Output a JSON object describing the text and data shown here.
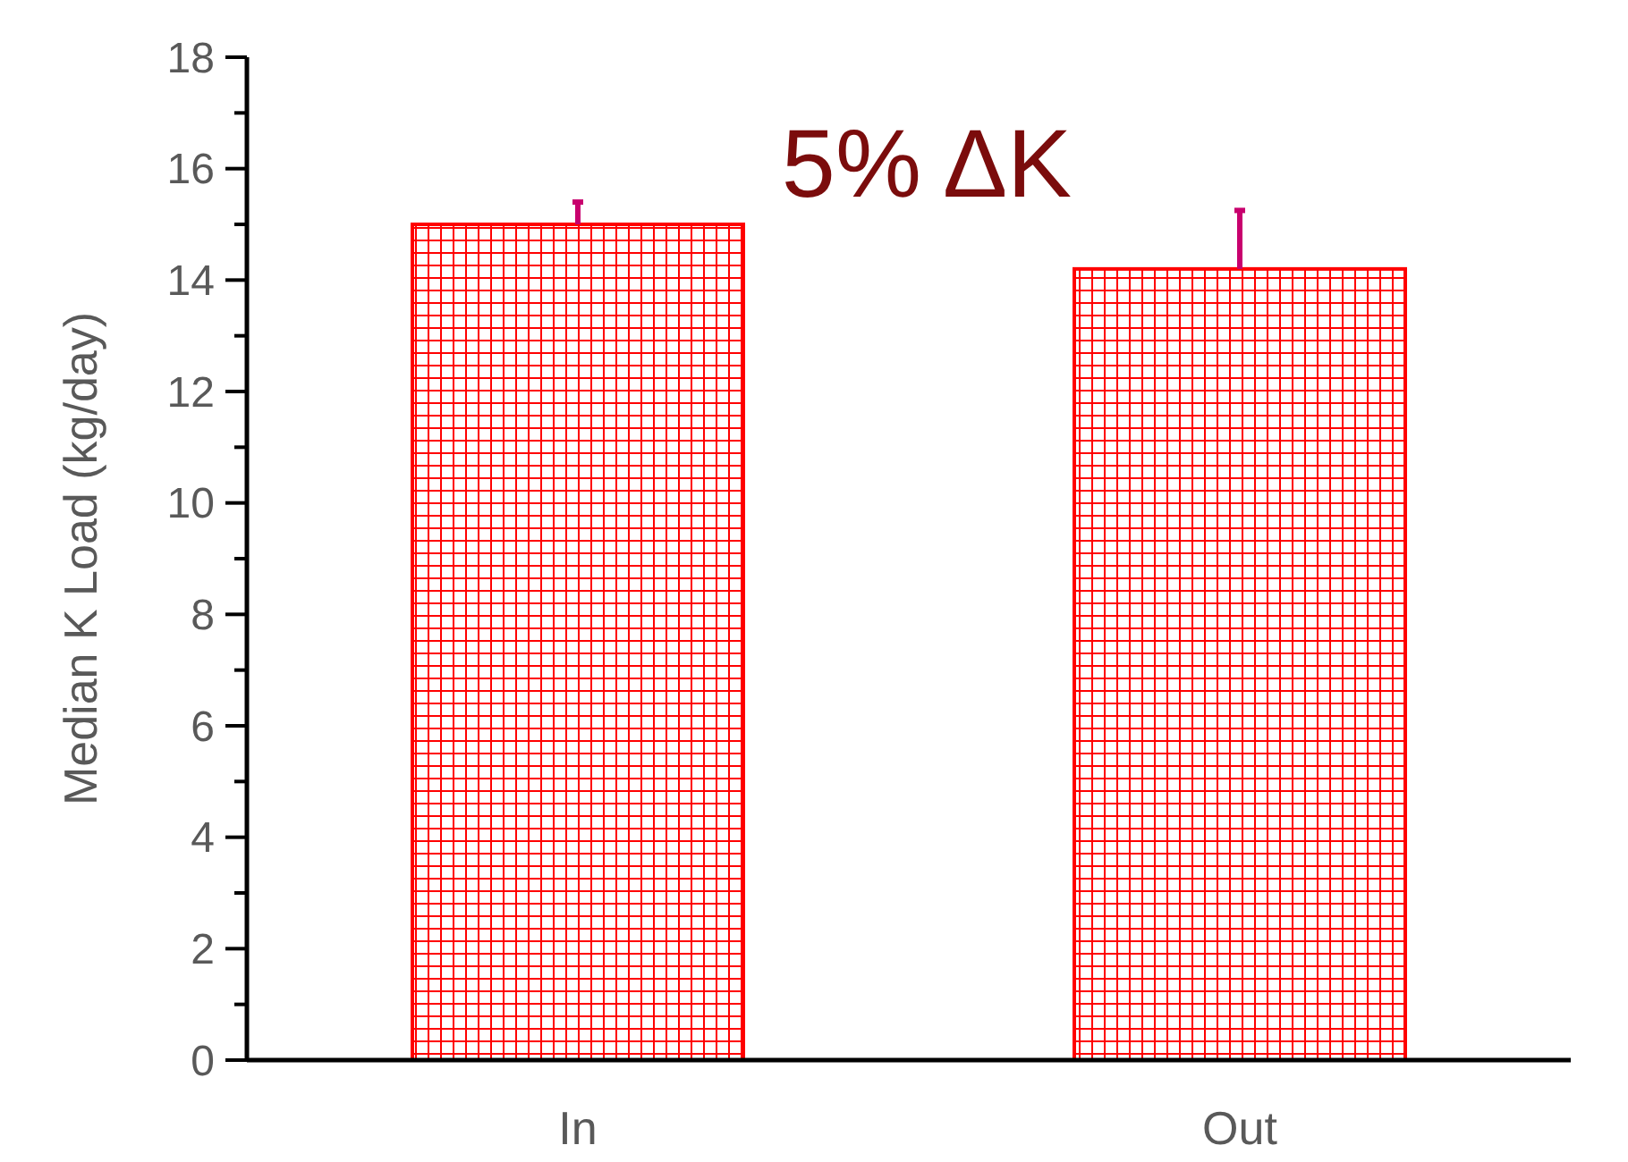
{
  "chart_data": {
    "type": "bar",
    "ylabel": "Median K Load (kg/day)",
    "categories": [
      "In",
      "Out"
    ],
    "values": [
      15.0,
      14.2
    ],
    "color": "#ff0000",
    "errors": [
      [
        15.0,
        15.4
      ],
      [
        14.2,
        15.25
      ]
    ],
    "ylim": [
      0,
      18
    ],
    "yticks": [
      0,
      {
        "value": 1,
        "label": null
      },
      2,
      {
        "value": 3,
        "label": null
      },
      4,
      {
        "value": 5,
        "label": null
      },
      6,
      {
        "value": 7,
        "label": null
      },
      8,
      {
        "value": 9,
        "label": null
      },
      10,
      {
        "value": 11,
        "label": null
      },
      12,
      {
        "value": 13,
        "label": null
      },
      14,
      {
        "value": 15,
        "label": null
      },
      16,
      {
        "value": 17,
        "label": null
      },
      18
    ],
    "annotations": [
      "5% ΔK"
    ],
    "grid": false
  }
}
